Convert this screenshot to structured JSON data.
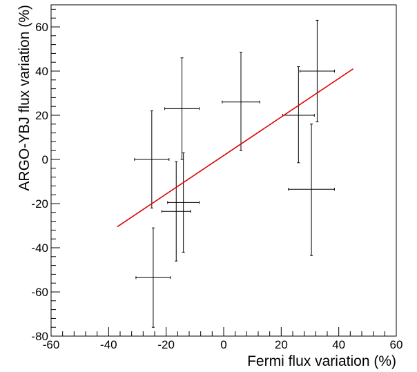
{
  "chart_data": {
    "type": "scatter",
    "title": "",
    "xlabel": "Fermi flux variation (%)",
    "ylabel": "ARGO-YBJ flux variation (%)",
    "xlim": [
      -60,
      60
    ],
    "ylim": [
      -80,
      70
    ],
    "xticks": [
      -60,
      -40,
      -20,
      0,
      20,
      40,
      60
    ],
    "yticks": [
      -80,
      -60,
      -40,
      -20,
      0,
      20,
      40,
      60
    ],
    "grid": false,
    "legend": "none",
    "colors": {
      "points": "#000000",
      "fit": "#e00000",
      "frame": "#000000"
    },
    "points": [
      {
        "x": -25,
        "y": 0,
        "xerr": 6,
        "ylo": -22,
        "yhi": 22
      },
      {
        "x": -24.5,
        "y": -53.5,
        "xerr": 6,
        "ylo": -76,
        "yhi": -31
      },
      {
        "x": -16.5,
        "y": -23.5,
        "xerr": 5,
        "ylo": -46,
        "yhi": -1
      },
      {
        "x": -14,
        "y": -19.5,
        "xerr": 5.5,
        "ylo": -42,
        "yhi": 3
      },
      {
        "x": -14.5,
        "y": 23,
        "xerr": 6,
        "ylo": 0,
        "yhi": 46
      },
      {
        "x": 6,
        "y": 26,
        "xerr": 6.5,
        "ylo": 4,
        "yhi": 48.5
      },
      {
        "x": 26,
        "y": 20,
        "xerr": 5.5,
        "ylo": -1.5,
        "yhi": 42
      },
      {
        "x": 30.5,
        "y": -13.5,
        "xerr": 8,
        "ylo": -43.5,
        "yhi": 16
      },
      {
        "x": 32.5,
        "y": 40,
        "xerr": 6,
        "ylo": 17,
        "yhi": 63
      }
    ],
    "fit_line": {
      "x": [
        -37,
        45
      ],
      "y": [
        -30.5,
        41
      ]
    }
  }
}
